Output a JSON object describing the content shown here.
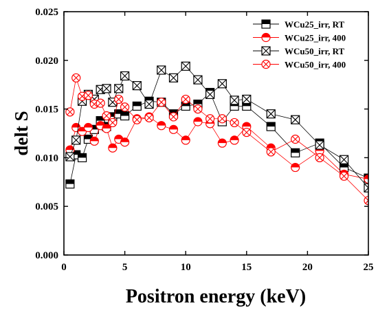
{
  "chart_data": {
    "type": "scatter",
    "xlabel": "Positron energy (keV)",
    "ylabel": "delt S",
    "xlim": [
      0,
      25
    ],
    "ylim": [
      0.0,
      0.025
    ],
    "xticks": [
      "0",
      "5",
      "10",
      "15",
      "20",
      "25"
    ],
    "yticks": [
      "0.000",
      "0.005",
      "0.010",
      "0.015",
      "0.020",
      "0.025"
    ],
    "legend_position": "top-right",
    "series": [
      {
        "name": "WCu25_irr, RT",
        "color": "#000000",
        "marker": "half-filled-square",
        "x": [
          0.5,
          1,
          1.5,
          2,
          2.5,
          3,
          3.5,
          4,
          4.5,
          5,
          6,
          7,
          8,
          9,
          10,
          11,
          12,
          13,
          14,
          15,
          17,
          19,
          21,
          23,
          25
        ],
        "y": [
          0.0073,
          0.0103,
          0.01,
          0.0119,
          0.0129,
          0.0138,
          0.0132,
          0.0142,
          0.0145,
          0.0143,
          0.0153,
          0.0158,
          0.0157,
          0.0145,
          0.0153,
          0.0155,
          0.0167,
          0.0137,
          0.0153,
          0.0153,
          0.0132,
          0.0105,
          0.0115,
          0.009,
          0.0079
        ]
      },
      {
        "name": "WCu25_irr, 400",
        "color": "#ff0000",
        "marker": "half-filled-circle",
        "x": [
          0.5,
          1,
          1.5,
          2,
          2.5,
          3,
          3.5,
          4,
          4.5,
          5,
          6,
          7,
          8,
          9,
          10,
          11,
          12,
          13,
          14,
          15,
          17,
          19,
          21,
          23,
          25
        ],
        "y": [
          0.0108,
          0.0131,
          0.0127,
          0.0131,
          0.0117,
          0.0133,
          0.013,
          0.011,
          0.0119,
          0.0116,
          0.014,
          0.0142,
          0.0133,
          0.0129,
          0.0118,
          0.0137,
          0.0135,
          0.0115,
          0.0118,
          0.0132,
          0.011,
          0.009,
          0.0107,
          0.0083,
          0.0078
        ]
      },
      {
        "name": "WCu50_irr, RT",
        "color": "#000000",
        "marker": "crossed-square",
        "x": [
          0.5,
          1,
          1.5,
          2,
          2.5,
          3,
          3.5,
          4,
          4.5,
          5,
          6,
          7,
          8,
          9,
          10,
          11,
          12,
          13,
          14,
          15,
          17,
          19,
          21,
          23,
          25
        ],
        "y": [
          0.0101,
          0.0118,
          0.0158,
          0.0165,
          0.016,
          0.017,
          0.0171,
          0.0157,
          0.0171,
          0.0184,
          0.0174,
          0.0155,
          0.019,
          0.0182,
          0.0194,
          0.018,
          0.0165,
          0.0176,
          0.0159,
          0.016,
          0.0145,
          0.0139,
          0.0113,
          0.0098,
          0.0069
        ]
      },
      {
        "name": "WCu50_irr, 400",
        "color": "#ff0000",
        "marker": "crossed-circle",
        "x": [
          0.5,
          1,
          1.5,
          2,
          2.5,
          3,
          3.5,
          4,
          4.5,
          5,
          6,
          7,
          8,
          9,
          10,
          11,
          12,
          13,
          14,
          15,
          17,
          19,
          21,
          23,
          25
        ],
        "y": [
          0.0147,
          0.0182,
          0.0163,
          0.0164,
          0.0155,
          0.0156,
          0.0143,
          0.0136,
          0.016,
          0.0152,
          0.0139,
          0.0141,
          0.0157,
          0.0142,
          0.016,
          0.015,
          0.014,
          0.014,
          0.0136,
          0.0126,
          0.0106,
          0.0119,
          0.01,
          0.0081,
          0.0056
        ]
      }
    ]
  }
}
